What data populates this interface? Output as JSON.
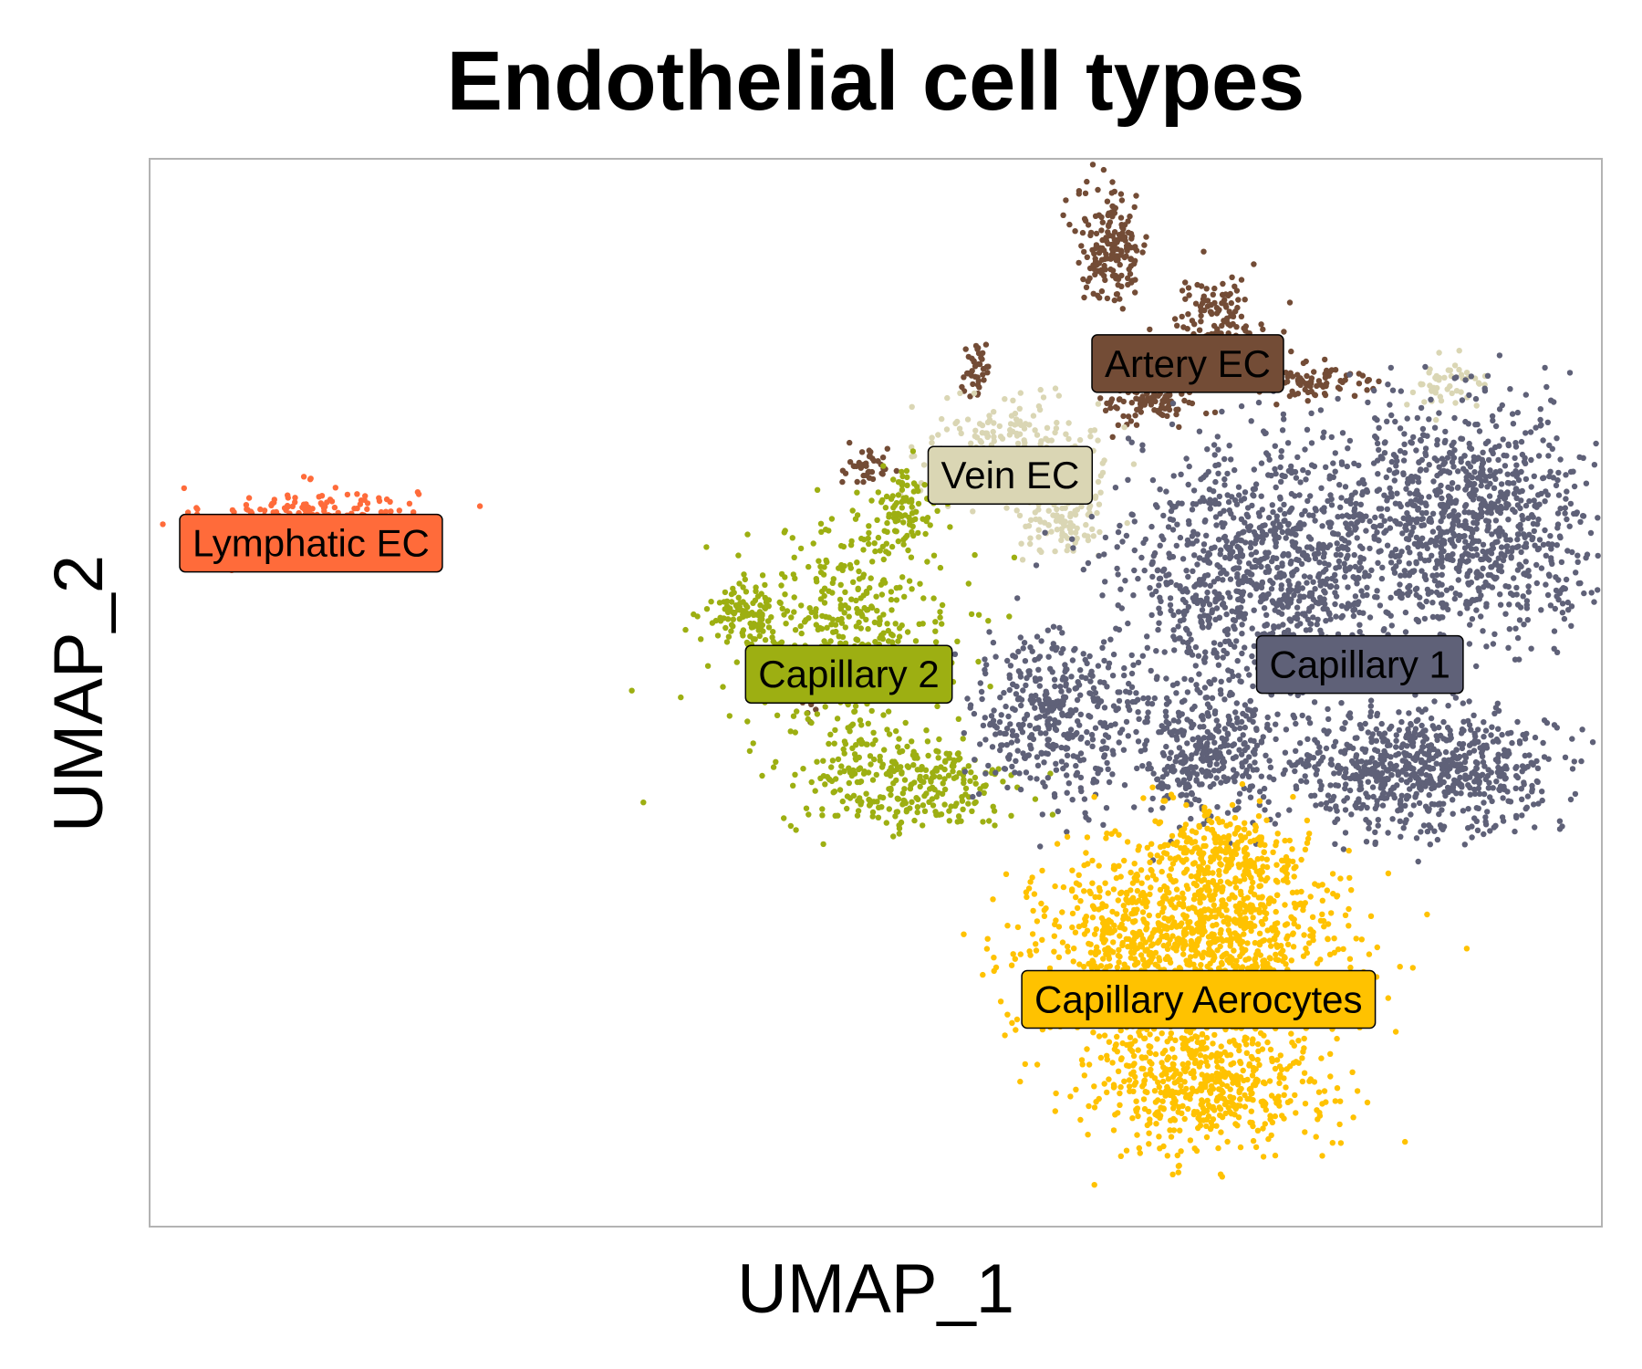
{
  "chart_data": {
    "type": "scatter",
    "title": "Endothelial cell types",
    "xlabel": "UMAP_1",
    "ylabel": "UMAP_2",
    "xlim": [
      -15,
      12
    ],
    "ylim": [
      -12,
      10
    ],
    "grid": false,
    "legend": "none",
    "series": [
      {
        "name": "Lymphatic EC",
        "color": "#FF6B3A",
        "blobs": [
          {
            "cx": -12.0,
            "cy": 2.6,
            "sx": 1.3,
            "sy": 0.42,
            "n": 230
          },
          {
            "cx": -12.7,
            "cy": 1.9,
            "sx": 0.7,
            "sy": 0.22,
            "n": 90
          }
        ]
      },
      {
        "name": "Artery EC",
        "color": "#734C36",
        "blobs": [
          {
            "cx": 2.9,
            "cy": 8.2,
            "sx": 0.45,
            "sy": 0.8,
            "n": 180
          },
          {
            "cx": 4.9,
            "cy": 6.5,
            "sx": 0.6,
            "sy": 0.7,
            "n": 160
          },
          {
            "cx": 3.6,
            "cy": 5.2,
            "sx": 0.6,
            "sy": 0.5,
            "n": 130
          },
          {
            "cx": 6.6,
            "cy": 5.4,
            "sx": 0.9,
            "sy": 0.22,
            "n": 90
          },
          {
            "cx": 0.4,
            "cy": 5.7,
            "sx": 0.18,
            "sy": 0.4,
            "n": 40
          },
          {
            "cx": -1.7,
            "cy": 3.6,
            "sx": 0.3,
            "sy": 0.3,
            "n": 40
          },
          {
            "cx": -2.8,
            "cy": -1.0,
            "sx": 0.3,
            "sy": 0.3,
            "n": 25
          }
        ]
      },
      {
        "name": "Vein EC",
        "color": "#DAD6B4",
        "blobs": [
          {
            "cx": 1.0,
            "cy": 4.0,
            "sx": 1.1,
            "sy": 0.7,
            "n": 230
          },
          {
            "cx": 2.0,
            "cy": 2.5,
            "sx": 0.6,
            "sy": 0.5,
            "n": 90
          },
          {
            "cx": 9.1,
            "cy": 5.3,
            "sx": 0.5,
            "sy": 0.3,
            "n": 50
          }
        ]
      },
      {
        "name": "Capillary 2",
        "color": "#9DAF12",
        "blobs": [
          {
            "cx": -2.0,
            "cy": 0.1,
            "sx": 1.3,
            "sy": 1.6,
            "n": 420
          },
          {
            "cx": -1.0,
            "cy": -2.9,
            "sx": 1.4,
            "sy": 0.7,
            "n": 280
          },
          {
            "cx": -3.9,
            "cy": 0.6,
            "sx": 0.5,
            "sy": 0.4,
            "n": 110
          },
          {
            "cx": -1.0,
            "cy": 2.7,
            "sx": 0.5,
            "sy": 0.6,
            "n": 100
          }
        ]
      },
      {
        "name": "Capillary 1",
        "color": "#5F6178",
        "blobs": [
          {
            "cx": 5.7,
            "cy": 1.5,
            "sx": 1.7,
            "sy": 1.8,
            "n": 1100
          },
          {
            "cx": 9.6,
            "cy": 2.6,
            "sx": 1.6,
            "sy": 1.5,
            "n": 950
          },
          {
            "cx": 8.7,
            "cy": -2.6,
            "sx": 1.6,
            "sy": 0.85,
            "n": 750
          },
          {
            "cx": 1.8,
            "cy": -1.5,
            "sx": 1.0,
            "sy": 1.2,
            "n": 400
          },
          {
            "cx": 4.6,
            "cy": -2.3,
            "sx": 1.0,
            "sy": 0.9,
            "n": 350
          }
        ]
      },
      {
        "name": "Capillary Aerocytes",
        "color": "#FFC200",
        "blobs": [
          {
            "cx": 4.3,
            "cy": -6.3,
            "sx": 1.9,
            "sy": 1.4,
            "n": 1400
          },
          {
            "cx": 4.6,
            "cy": -9.2,
            "sx": 1.5,
            "sy": 0.8,
            "n": 500
          },
          {
            "cx": 4.9,
            "cy": -4.3,
            "sx": 0.9,
            "sy": 0.6,
            "n": 200
          }
        ]
      }
    ],
    "cluster_labels": [
      {
        "text": "Lymphatic EC",
        "x": -12.0,
        "y": 2.1,
        "color": "#FF6B3A"
      },
      {
        "text": "Artery EC",
        "x": 4.3,
        "y": 5.8,
        "color": "#734C36"
      },
      {
        "text": "Vein EC",
        "x": 1.0,
        "y": 3.5,
        "color": "#DAD6B4"
      },
      {
        "text": "Capillary 2",
        "x": -2.0,
        "y": -0.6,
        "color": "#9DAF12"
      },
      {
        "text": "Capillary 1",
        "x": 7.5,
        "y": -0.4,
        "color": "#5F6178"
      },
      {
        "text": "Capillary Aerocytes",
        "x": 4.5,
        "y": -7.3,
        "color": "#FFC200"
      }
    ]
  }
}
